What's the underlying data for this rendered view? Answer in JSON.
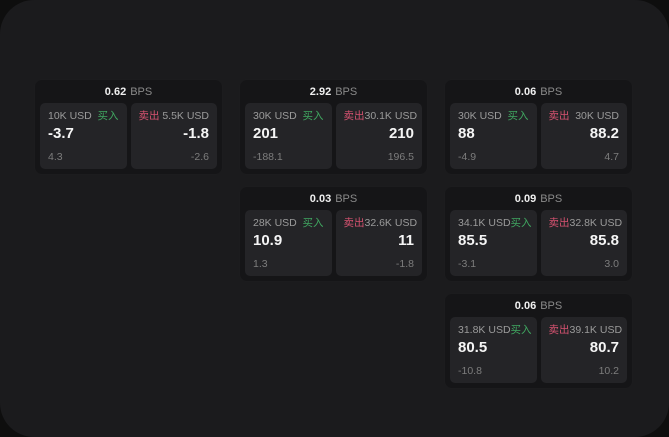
{
  "labels": {
    "bps_unit": "BPS",
    "buy": "买入",
    "sell": "卖出"
  },
  "colors": {
    "buy_tag": "#40a861",
    "sell_tag": "#d65270",
    "panel_background": "#1b1b1d",
    "card_background": "#151517",
    "subpanel_background": "#242427"
  },
  "cards": [
    {
      "bps": "0.62",
      "buy": {
        "size": "10K USD",
        "value": "-3.7",
        "delta": "4.3"
      },
      "sell": {
        "size": "5.5K USD",
        "value": "-1.8",
        "delta": "-2.6"
      }
    },
    {
      "bps": "2.92",
      "buy": {
        "size": "30K USD",
        "value": "201",
        "delta": "-188.1"
      },
      "sell": {
        "size": "30.1K USD",
        "value": "210",
        "delta": "196.5"
      }
    },
    {
      "bps": "0.06",
      "buy": {
        "size": "30K USD",
        "value": "88",
        "delta": "-4.9"
      },
      "sell": {
        "size": "30K USD",
        "value": "88.2",
        "delta": "4.7"
      }
    },
    {
      "bps": "0.03",
      "buy": {
        "size": "28K USD",
        "value": "10.9",
        "delta": "1.3"
      },
      "sell": {
        "size": "32.6K USD",
        "value": "11",
        "delta": "-1.8"
      }
    },
    {
      "bps": "0.09",
      "buy": {
        "size": "34.1K USD",
        "value": "85.5",
        "delta": "-3.1"
      },
      "sell": {
        "size": "32.8K USD",
        "value": "85.8",
        "delta": "3.0"
      }
    },
    {
      "bps": "0.06",
      "buy": {
        "size": "31.8K USD",
        "value": "80.5",
        "delta": "-10.8"
      },
      "sell": {
        "size": "39.1K USD",
        "value": "80.7",
        "delta": "10.2"
      }
    }
  ]
}
